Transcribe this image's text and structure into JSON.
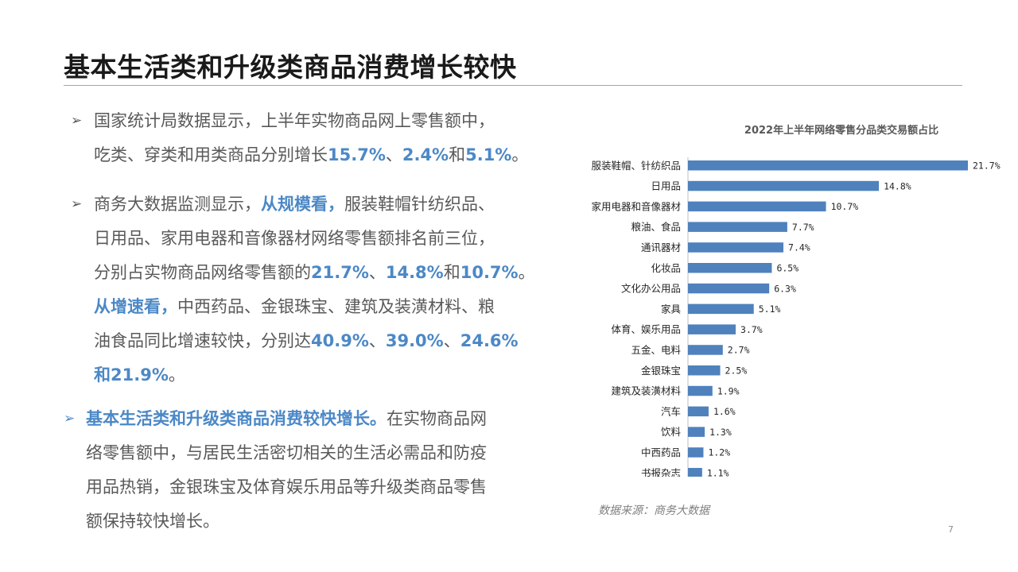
{
  "title": "基本生活类和升级类商品消费增长较快",
  "bullets": {
    "marker": "➢",
    "p1": {
      "line1": "国家统计局数据显示，上半年实物商品网上零售额中，",
      "line2_a": "吃类、穿类和用类商品分别增长",
      "v1": "15.7%",
      "sep1": "、",
      "v2": "2.4%",
      "sep2": "和",
      "v3": "5.1%",
      "end": "。"
    },
    "p2": {
      "l1_a": "商务大数据监测显示，",
      "l1_hl": "从规模看，",
      "l1_b": "服装鞋帽针纺织品、",
      "l2": "日用品、家用电器和音像器材网络零售额排名前三位，",
      "l3_a": "分别占实物商品网络零售额的",
      "l3_v1": "21.7%",
      "l3_s1": "、",
      "l3_v2": "14.8%",
      "l3_s2": "和",
      "l3_v3": "10.7%",
      "l3_end": "。",
      "l4_hl": "从增速看，",
      "l4_b": "中西药品、金银珠宝、建筑及装潢材料、粮",
      "l5_a": "油食品同比增速较快，分别达",
      "l5_v1": "40.9%",
      "l5_s1": "、",
      "l5_v2": "39.0%",
      "l5_s2": "、",
      "l5_v3": "24.6%",
      "l6_v": "和21.9%",
      "l6_end": "。"
    },
    "p3": {
      "lead": "基本生活类和升级类商品消费较快增长。",
      "l1_b": "在实物商品网",
      "l2": "络零售额中，与居民生活密切相关的生活必需品和防疫",
      "l3": "用品热销，金银珠宝及体育娱乐用品等升级类商品零售",
      "l4": "额保持较快增长。"
    }
  },
  "source": "数据来源：商务大数据",
  "page_number": "7",
  "colors": {
    "bar": "#4f81bd",
    "highlight": "#4c88c6"
  },
  "chart_data": {
    "type": "bar",
    "orientation": "horizontal",
    "title": "2022年上半年网络零售分品类交易额占比",
    "categories": [
      "服装鞋帽、针纺织品",
      "日用品",
      "家用电器和音像器材",
      "粮油、食品",
      "通讯器材",
      "化妆品",
      "文化办公用品",
      "家具",
      "体育、娱乐用品",
      "五金、电料",
      "金银珠宝",
      "建筑及装潢材料",
      "汽车",
      "饮料",
      "中西药品",
      "书报杂志"
    ],
    "values": [
      21.7,
      14.8,
      10.7,
      7.7,
      7.4,
      6.5,
      6.3,
      5.1,
      3.7,
      2.7,
      2.5,
      1.9,
      1.6,
      1.3,
      1.2,
      1.1
    ],
    "value_labels": [
      "21.7%",
      "14.8%",
      "10.7%",
      "7.7%",
      "7.4%",
      "6.5%",
      "6.3%",
      "5.1%",
      "3.7%",
      "2.7%",
      "2.5%",
      "1.9%",
      "1.6%",
      "1.3%",
      "1.2%",
      "1.1%"
    ],
    "xlim": [
      0,
      21.7
    ],
    "grid": false,
    "legend": "none"
  }
}
